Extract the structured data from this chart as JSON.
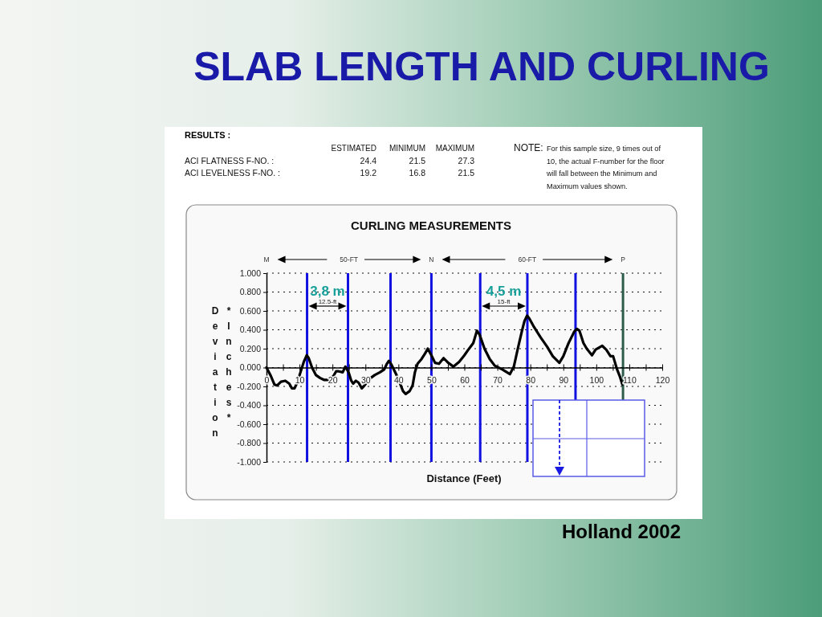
{
  "chart_data": [
    {
      "type": "other",
      "title": "SLAB LENGTH AND CURLING",
      "subtitle": "RESULTS :",
      "annotations": [
        "ESTIMATED",
        "MINIMUM",
        "MAXIMUM",
        "ACI FLATNESS F-NO. :",
        "24.4",
        "21.5",
        "27.3",
        "ACI LEVELNESS F-NO. :",
        "19.2",
        "16.8",
        "21.5",
        "NOTE:",
        "For this sample size, 9 times out of 10, the actual F-number for the floor will fall between the Minimum and Maximum values shown."
      ]
    },
    {
      "type": "line",
      "title": "CURLING MEASUREMENTS",
      "xlabel": "Distance (Feet)",
      "ylabel": "Deviation *Inches*",
      "color": "#000000",
      "line_style": "solid",
      "grid": "y",
      "x": [
        0,
        1.2,
        2.4,
        3.2,
        4.4,
        5.7,
        6.9,
        7.7,
        8.5,
        9.3,
        10.3,
        11.3,
        12.2,
        12.8,
        13.8,
        15.0,
        16.2,
        17.4,
        19.0,
        20.3,
        21.1,
        21.9,
        23.1,
        23.9,
        24.9,
        25.7,
        26.3,
        27.1,
        27.9,
        28.9,
        29.7,
        31.2,
        32.8,
        34.4,
        35.7,
        36.5,
        37.1,
        37.9,
        39.3,
        40.5,
        41.4,
        42.2,
        43.4,
        44.3,
        45.0,
        45.8,
        47.0,
        48.1,
        48.9,
        50.0,
        51.1,
        52.3,
        53.7,
        55.1,
        56.7,
        58.4,
        60.0,
        61.2,
        62.7,
        63.8,
        64.6,
        66.1,
        67.7,
        69.2,
        71.5,
        73.8,
        75.0,
        76.2,
        77.4,
        78.2,
        79.0,
        79.7,
        81.1,
        83.1,
        85.1,
        86.8,
        88.8,
        90.0,
        91.6,
        93.3,
        94.1,
        94.9,
        96.1,
        97.1,
        98.7,
        99.8,
        101.8,
        103.0,
        104.3,
        105.1,
        106.3,
        107.1,
        107.9
      ],
      "values": [
        0,
        -0.08,
        -0.18,
        -0.19,
        -0.15,
        -0.14,
        -0.17,
        -0.22,
        -0.22,
        -0.16,
        -0.05,
        0.06,
        0.13,
        0.1,
        0.0,
        -0.08,
        -0.11,
        -0.13,
        -0.13,
        -0.09,
        -0.04,
        -0.04,
        -0.05,
        0.01,
        -0.05,
        -0.14,
        -0.17,
        -0.14,
        -0.16,
        -0.22,
        -0.19,
        -0.12,
        -0.08,
        -0.05,
        -0.02,
        0.04,
        0.07,
        0.03,
        -0.07,
        -0.17,
        -0.25,
        -0.28,
        -0.25,
        -0.19,
        -0.05,
        0.04,
        0.09,
        0.15,
        0.2,
        0.13,
        0.05,
        0.04,
        0.1,
        0.05,
        0.01,
        0.06,
        0.13,
        0.19,
        0.26,
        0.39,
        0.35,
        0.2,
        0.09,
        0.02,
        -0.02,
        -0.07,
        0.01,
        0.2,
        0.38,
        0.49,
        0.55,
        0.52,
        0.43,
        0.32,
        0.22,
        0.12,
        0.05,
        0.12,
        0.26,
        0.38,
        0.41,
        0.39,
        0.26,
        0.2,
        0.13,
        0.19,
        0.23,
        0.19,
        0.12,
        0.12,
        -0.02,
        -0.09,
        -0.18
      ],
      "xlim": [
        0,
        120
      ],
      "xticks": [
        0,
        {
          "value": 5,
          "label": null
        },
        10,
        {
          "value": 15,
          "label": null
        },
        20,
        {
          "value": 25,
          "label": null
        },
        30,
        {
          "value": 35,
          "label": null
        },
        40,
        {
          "value": 45,
          "label": null
        },
        50,
        {
          "value": 55,
          "label": null
        },
        60,
        {
          "value": 65,
          "label": null
        },
        70,
        {
          "value": 75,
          "label": null
        },
        80,
        {
          "value": 85,
          "label": null
        },
        90,
        {
          "value": 95,
          "label": null
        },
        100,
        {
          "value": 105,
          "label": null
        },
        110,
        {
          "value": 115,
          "label": null
        },
        120
      ],
      "ylim": [
        -1,
        1
      ],
      "yticks": [
        {
          "value": -1,
          "label": "-1.000"
        },
        {
          "value": -0.8,
          "label": "-0.800"
        },
        {
          "value": -0.6,
          "label": "-0.600"
        },
        {
          "value": -0.4,
          "label": "-0.400"
        },
        {
          "value": -0.2,
          "label": "-0.200"
        },
        {
          "value": 0,
          "label": "0.000"
        },
        {
          "value": 0.2,
          "label": "0.200"
        },
        {
          "value": 0.4,
          "label": "0.400"
        },
        {
          "value": 0.6,
          "label": "0.600"
        },
        {
          "value": 0.8,
          "label": "0.800"
        },
        {
          "value": 1,
          "label": "1.000"
        }
      ],
      "ref_lines": [
        {
          "axis": "x",
          "value": 12.3,
          "color": "#1010e0"
        },
        {
          "axis": "x",
          "value": 24.7,
          "color": "#1010e0"
        },
        {
          "axis": "x",
          "value": 37.6,
          "color": "#1010e0"
        },
        {
          "axis": "x",
          "value": 50,
          "color": "#1010e0"
        },
        {
          "axis": "x",
          "value": 64.8,
          "color": "#1010e0"
        },
        {
          "axis": "x",
          "value": 79.1,
          "color": "#1010e0"
        },
        {
          "axis": "x",
          "value": 93.7,
          "color": "#1010e0"
        },
        {
          "axis": "x",
          "value": 108.1,
          "color": "#2d5c4a"
        }
      ],
      "annotations": [
        "M",
        "50-FT",
        "N",
        "60-FT",
        "P",
        "3,8 m",
        "12.5-ft",
        "4,5 m",
        "15-ft",
        "Holland 2002"
      ]
    }
  ]
}
